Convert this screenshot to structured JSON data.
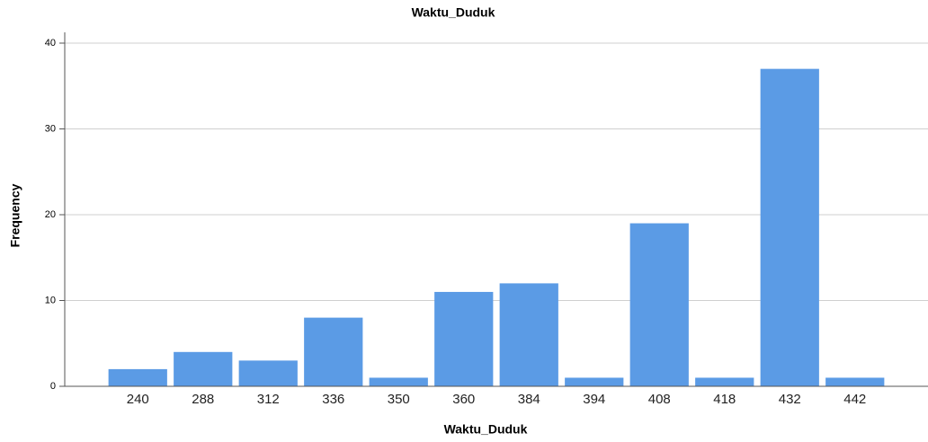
{
  "chart_data": {
    "type": "bar",
    "title": "Waktu_Duduk",
    "x_label": "Waktu_Duduk",
    "y_label": "Frequency",
    "categories": [
      "240",
      "288",
      "312",
      "336",
      "350",
      "360",
      "384",
      "394",
      "408",
      "418",
      "432",
      "442"
    ],
    "values": [
      2,
      4,
      3,
      8,
      1,
      11,
      12,
      1,
      19,
      1,
      37,
      1
    ],
    "color": "#5b9be5",
    "ylim": [
      0,
      40
    ],
    "yticks": [
      0,
      10,
      20,
      30,
      40
    ],
    "grid": true
  }
}
